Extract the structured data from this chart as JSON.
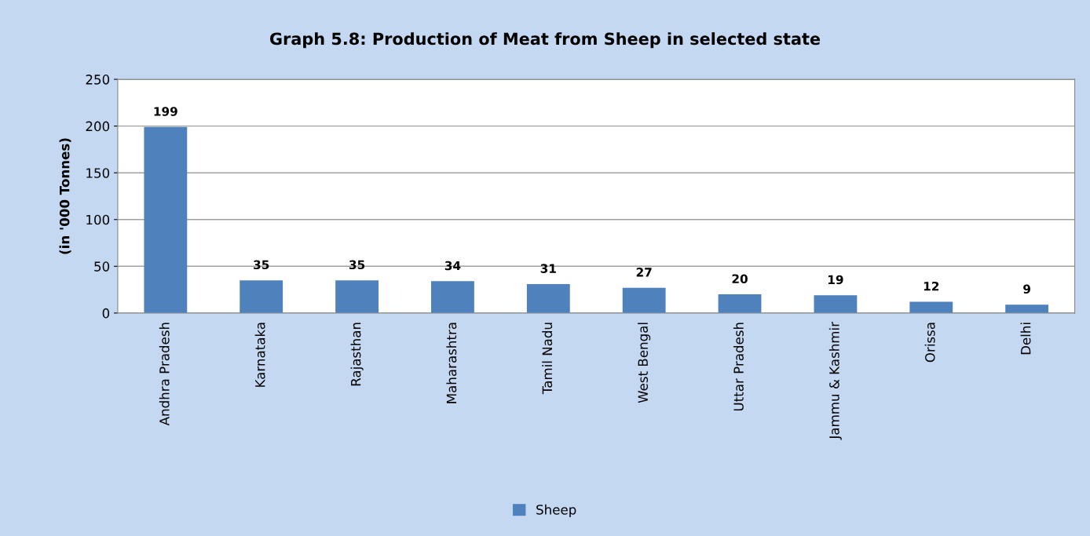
{
  "chart_data": {
    "type": "bar",
    "title": "Graph 5.8: Production of Meat from Sheep in selected state",
    "ylabel": "(in '000 Tonnes)",
    "categories": [
      "Andhra Pradesh",
      "Karnataka",
      "Rajasthan",
      "Maharashtra",
      "Tamil Nadu",
      "West Bengal",
      "Uttar Pradesh",
      "Jammu & Kashmir",
      "Orissa",
      "Delhi"
    ],
    "series": [
      {
        "name": "Sheep",
        "color": "#4f81bd",
        "values": [
          199,
          35,
          35,
          34,
          31,
          27,
          20,
          19,
          12,
          9
        ]
      }
    ],
    "ylim": [
      0,
      250
    ],
    "yticks": [
      0,
      50,
      100,
      150,
      200,
      250
    ],
    "grid": "y",
    "legend": "bottom",
    "data_labels": true
  }
}
